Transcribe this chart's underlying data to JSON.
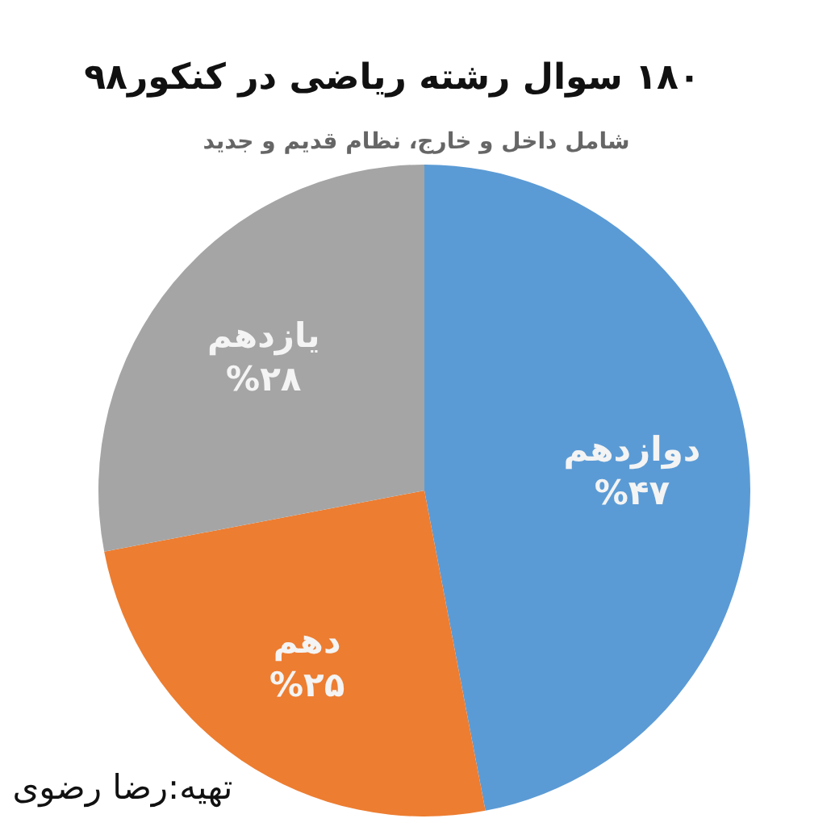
{
  "chart_data": {
    "type": "pie",
    "title": "۱۸۰ سوال رشته ریاضی در کنکور۹۸",
    "subtitle": "شامل داخل و خارج، نظام قدیم و جدید",
    "categories": [
      "دوازدهم",
      "دهم",
      "یازدهم"
    ],
    "values": [
      47,
      25,
      28
    ],
    "colors": [
      "#5b9bd5",
      "#ed7d31",
      "#a5a5a5"
    ],
    "value_labels": [
      "%۴۷",
      "%۲۵",
      "%۲۸"
    ],
    "annotations": [
      "تهیه:رضا رضوی"
    ]
  }
}
